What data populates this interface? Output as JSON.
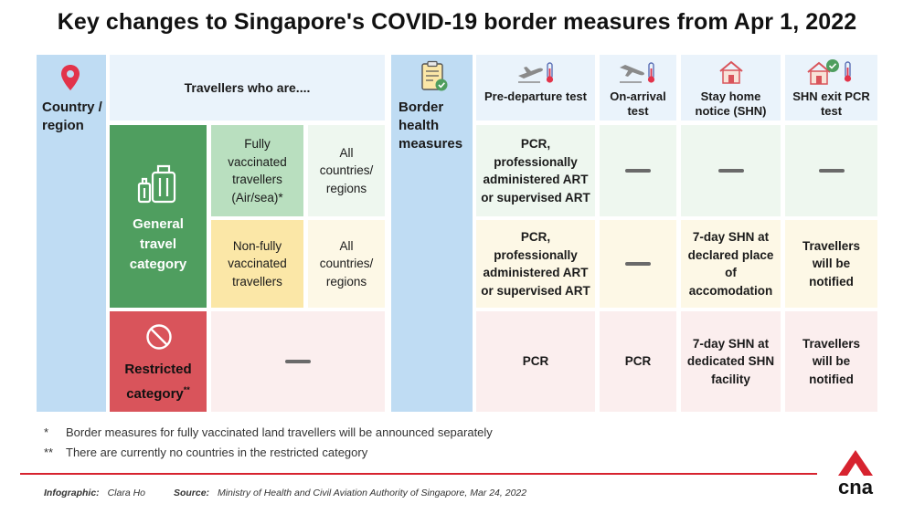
{
  "title": "Key changes to Singapore's COVID-19 border measures from Apr 1, 2022",
  "left_table": {
    "country_header": "Country / region",
    "travellers_header": "Travellers who are....",
    "general_category": "General travel category",
    "restricted_category": "Restricted category",
    "restricted_mark": "**",
    "rows": [
      {
        "traveller": "Fully vaccinated travellers (Air/sea)*",
        "countries": "All countries/ regions"
      },
      {
        "traveller": "Non-fully vaccinated travellers",
        "countries": "All countries/ regions"
      }
    ]
  },
  "right_table": {
    "border_header": "Border health measures",
    "columns": [
      "Pre-departure test",
      "On-arrival test",
      "Stay home notice (SHN)",
      "SHN exit PCR test"
    ],
    "rows": [
      [
        "PCR, professionally administered ART or supervised ART",
        "—",
        "—",
        "—"
      ],
      [
        "PCR, professionally administered ART or supervised ART",
        "—",
        "7-day SHN at declared place of accomodation",
        "Travellers will be notified"
      ],
      [
        "PCR",
        "PCR",
        "7-day SHN at dedicated SHN facility",
        "Travellers will be notified"
      ]
    ]
  },
  "footnotes": [
    {
      "mark": "*",
      "text": "Border measures for fully vaccinated land travellers will be announced separately"
    },
    {
      "mark": "**",
      "text": "There are currently no countries in the restricted category"
    }
  ],
  "credits": {
    "infographic_label": "Infographic:",
    "infographic_value": "Clara Ho",
    "source_label": "Source:",
    "source_value": "Ministry of Health and Civil Aviation Authority of Singapore, Mar 24, 2022"
  },
  "logo": "cna",
  "colors": {
    "header_blue": "#bfdcf3",
    "general_green": "#4f9e5f",
    "restricted_red": "#d9545b",
    "nonvax_yellow": "#fbe7a7",
    "cna_red": "#d7232f"
  },
  "icons": [
    "location-pin-icon",
    "luggage-icon",
    "no-entry-icon",
    "document-check-icon",
    "plane-departure-thermometer-icon",
    "plane-arrival-thermometer-icon",
    "home-icon",
    "home-check-thermometer-icon"
  ]
}
